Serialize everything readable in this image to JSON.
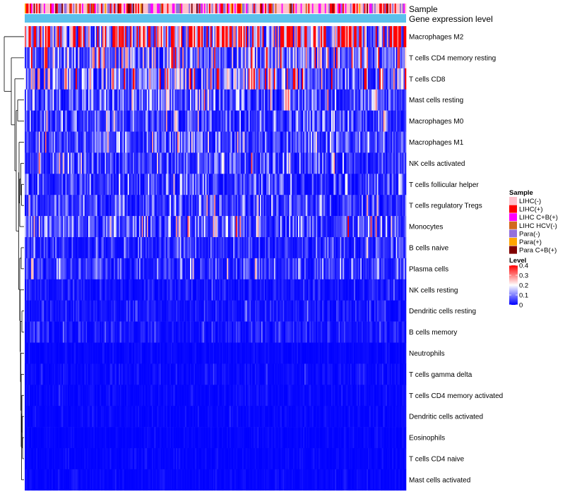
{
  "chart_data": {
    "type": "heatmap",
    "title": "",
    "annotation_tracks": [
      "Sample",
      "Gene expression level"
    ],
    "rows": [
      {
        "name": "Macrophages M2",
        "mean": 0.3
      },
      {
        "name": "T cells CD4 memory resting",
        "mean": 0.13
      },
      {
        "name": "T cells CD8",
        "mean": 0.15
      },
      {
        "name": "Mast cells resting",
        "mean": 0.08
      },
      {
        "name": "Macrophages M0",
        "mean": 0.07
      },
      {
        "name": "Macrophages M1",
        "mean": 0.07
      },
      {
        "name": "NK cells activated",
        "mean": 0.06
      },
      {
        "name": "T cells follicular helper",
        "mean": 0.05
      },
      {
        "name": "T cells regulatory  Tregs",
        "mean": 0.06
      },
      {
        "name": "Monocytes",
        "mean": 0.08
      },
      {
        "name": "B cells naive",
        "mean": 0.04
      },
      {
        "name": "Plasma cells",
        "mean": 0.05
      },
      {
        "name": "NK cells resting",
        "mean": 0.02
      },
      {
        "name": "Dendritic cells resting",
        "mean": 0.02
      },
      {
        "name": "B cells memory",
        "mean": 0.02
      },
      {
        "name": "Neutrophils",
        "mean": 0.005
      },
      {
        "name": "T cells gamma delta",
        "mean": 0.01
      },
      {
        "name": "T cells CD4 memory activated",
        "mean": 0.008
      },
      {
        "name": "Dendritic cells activated",
        "mean": 0.006
      },
      {
        "name": "Eosinophils",
        "mean": 0.004
      },
      {
        "name": "T cells CD4 naive",
        "mean": 0.005
      },
      {
        "name": "Mast cells activated",
        "mean": 0.006
      }
    ],
    "sample_count": 300,
    "sample_legend": {
      "title": "Sample",
      "items": [
        {
          "label": "LIHC(-)",
          "color": "#ffc0cb"
        },
        {
          "label": "LIHC(+)",
          "color": "#ff0000"
        },
        {
          "label": "LIHC C+B(+)",
          "color": "#ff00ff"
        },
        {
          "label": "LIHC HCV(-)",
          "color": "#d2691e"
        },
        {
          "label": "Para(-)",
          "color": "#9370db"
        },
        {
          "label": "Para(+)",
          "color": "#ffa500"
        },
        {
          "label": "Para C+B(+)",
          "color": "#800000"
        }
      ]
    },
    "level_legend": {
      "title": "Level",
      "ticks": [
        "0.4",
        "0.3",
        "0.2",
        "0.1",
        "0"
      ],
      "tick_values": [
        0.4,
        0.3,
        0.2,
        0.1,
        0
      ],
      "range": [
        0,
        0.4
      ],
      "colors": [
        "#0000ff",
        "#ffffff",
        "#ff0000"
      ]
    },
    "gene_expression_color": "#5bc0eb"
  }
}
